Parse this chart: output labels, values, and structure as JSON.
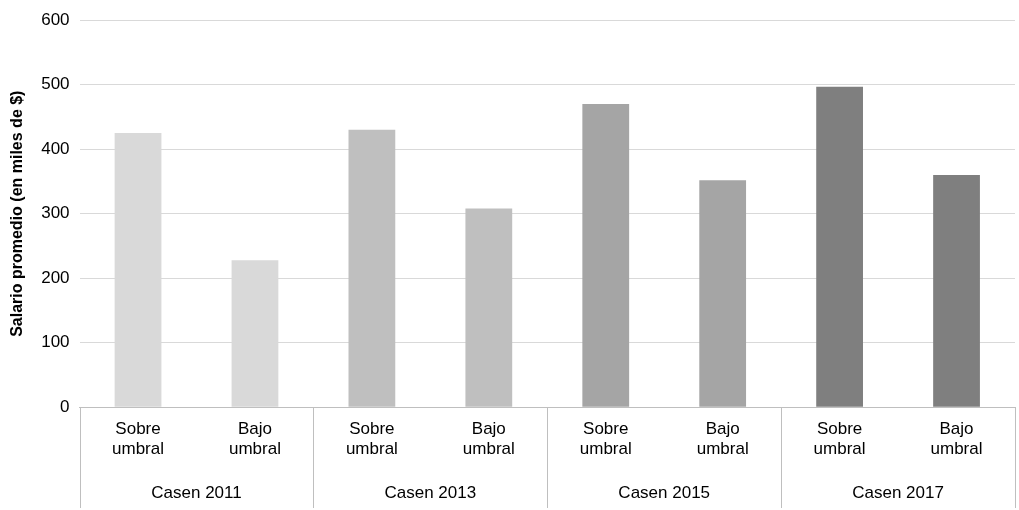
{
  "chart_data": {
    "type": "bar",
    "ylabel": "Salario promedio (en miles de $)",
    "categories": [
      "Sobre umbral",
      "Bajo umbral",
      "Sobre umbral",
      "Bajo umbral",
      "Sobre umbral",
      "Bajo umbral",
      "Sobre umbral",
      "Bajo umbral"
    ],
    "values": [
      425,
      228,
      430,
      308,
      470,
      352,
      497,
      360
    ],
    "colors": [
      "#d9d9d9",
      "#d9d9d9",
      "#bfbfbf",
      "#bfbfbf",
      "#a5a5a5",
      "#a5a5a5",
      "#7f7f7f",
      "#7f7f7f"
    ],
    "annotations": [
      "Casen 2011",
      "Casen 2013",
      "Casen 2015",
      "Casen 2017"
    ],
    "ylim": [
      0,
      600
    ],
    "yticks": [
      0,
      100,
      200,
      300,
      400,
      500,
      600
    ],
    "grid": "y",
    "legend": false
  }
}
